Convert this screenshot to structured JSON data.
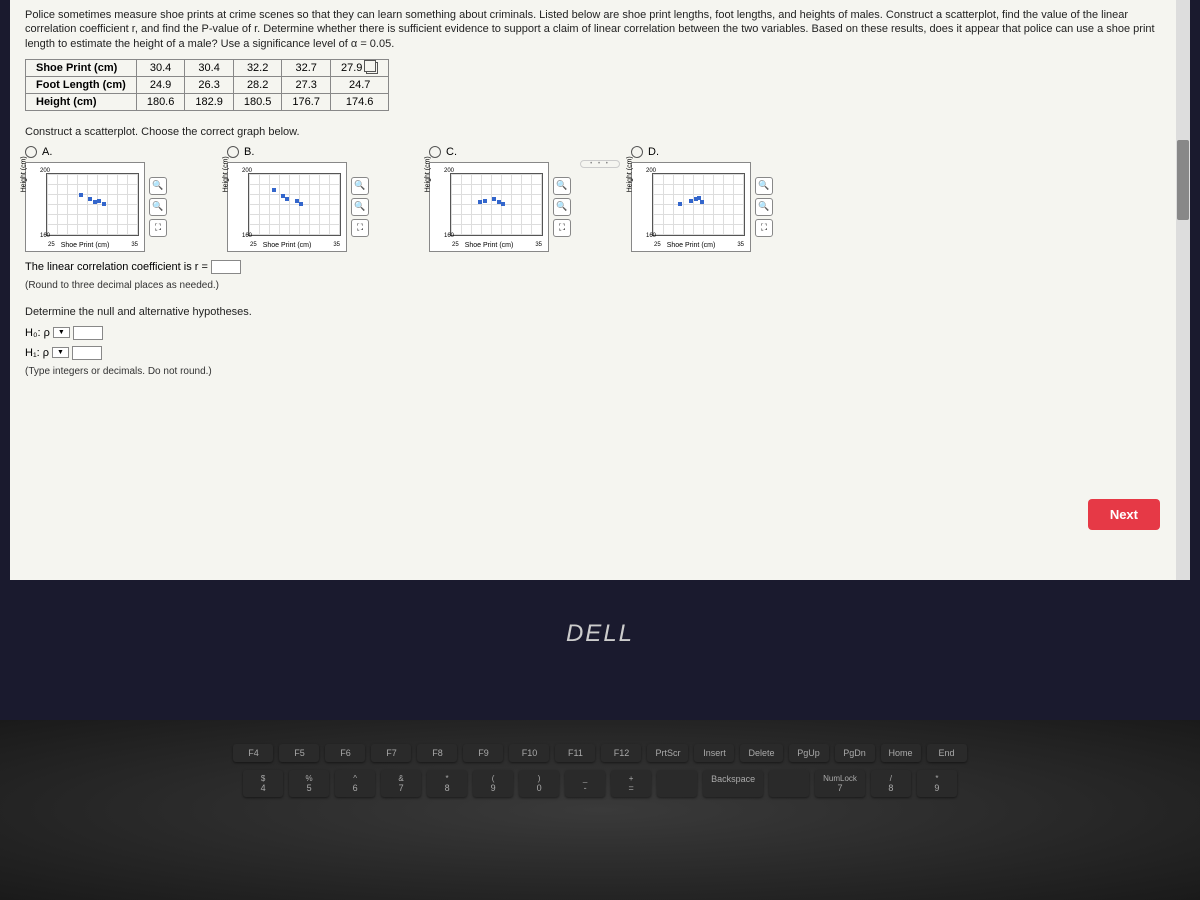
{
  "problem": {
    "text": "Police sometimes measure shoe prints at crime scenes so that they can learn something about criminals. Listed below are shoe print lengths, foot lengths, and heights of males. Construct a scatterplot, find the value of the linear correlation coefficient r, and find the P-value of r. Determine whether there is sufficient evidence to support a claim of linear correlation between the two variables. Based on these results, does it appear that police can use a shoe print length to estimate the height of a male? Use a significance level of α = 0.05."
  },
  "table": {
    "rows": [
      [
        "Shoe Print (cm)",
        "30.4",
        "30.4",
        "32.2",
        "32.7",
        "27.9"
      ],
      [
        "Foot Length (cm)",
        "24.9",
        "26.3",
        "28.2",
        "27.3",
        "24.7"
      ],
      [
        "Height (cm)",
        "180.6",
        "182.9",
        "180.5",
        "176.7",
        "174.6"
      ]
    ]
  },
  "scatterplot": {
    "prompt": "Construct a scatterplot. Choose the correct graph below.",
    "options": [
      "A.",
      "B.",
      "C.",
      "D."
    ],
    "y_label": "Height (cm)",
    "x_label": "Shoe Print (cm)",
    "y_min": "160",
    "y_max": "200",
    "x_min": "25",
    "x_max": "35",
    "points": {
      "A": [
        [
          45,
          55
        ],
        [
          50,
          50
        ],
        [
          55,
          52
        ],
        [
          35,
          62
        ],
        [
          60,
          48
        ]
      ],
      "B": [
        [
          35,
          60
        ],
        [
          40,
          55
        ],
        [
          50,
          52
        ],
        [
          55,
          48
        ],
        [
          25,
          70
        ]
      ],
      "C": [
        [
          30,
          50
        ],
        [
          35,
          52
        ],
        [
          45,
          55
        ],
        [
          50,
          50
        ],
        [
          55,
          48
        ]
      ],
      "D": [
        [
          28,
          48
        ],
        [
          40,
          52
        ],
        [
          45,
          55
        ],
        [
          52,
          50
        ],
        [
          48,
          58
        ]
      ]
    }
  },
  "correlation": {
    "text": "The linear correlation coefficient is r =",
    "instruction": "(Round to three decimal places as needed.)"
  },
  "hypotheses": {
    "prompt": "Determine the null and alternative hypotheses.",
    "h0": "H₀: ρ",
    "h1": "H₁: ρ",
    "instruction": "(Type integers or decimals. Do not round.)"
  },
  "buttons": {
    "next": "Next"
  },
  "logo": "DELL",
  "keyboard": {
    "fn_row": [
      "F4",
      "F5",
      "F6",
      "F7",
      "F8",
      "F9",
      "F10",
      "F11",
      "F12",
      "PrtScr",
      "Insert",
      "Delete",
      "PgUp",
      "PgDn",
      "Home",
      "End"
    ],
    "sym_row_top": [
      "$",
      "%",
      "^",
      "&",
      "*",
      "(",
      ")",
      "_",
      "+",
      "",
      "",
      "",
      "NumLock",
      "/",
      "*"
    ],
    "sym_row_bot": [
      "4",
      "5",
      "6",
      "7",
      "8",
      "9",
      "0",
      "-",
      "=",
      "",
      "Backspace",
      "",
      "7",
      "8",
      "9"
    ]
  }
}
